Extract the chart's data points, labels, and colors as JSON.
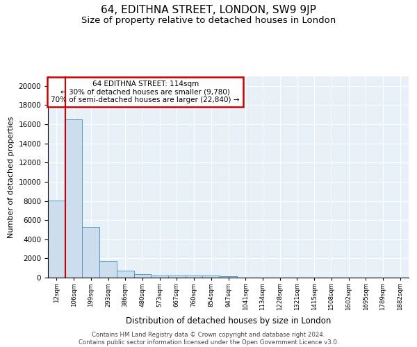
{
  "title": "64, EDITHNA STREET, LONDON, SW9 9JP",
  "subtitle": "Size of property relative to detached houses in London",
  "xlabel": "Distribution of detached houses by size in London",
  "ylabel": "Number of detached properties",
  "categories": [
    "12sqm",
    "106sqm",
    "199sqm",
    "293sqm",
    "386sqm",
    "480sqm",
    "573sqm",
    "667sqm",
    "760sqm",
    "854sqm",
    "947sqm",
    "1041sqm",
    "1134sqm",
    "1228sqm",
    "1321sqm",
    "1415sqm",
    "1508sqm",
    "1602sqm",
    "1695sqm",
    "1789sqm",
    "1882sqm"
  ],
  "bar_heights": [
    8050,
    16500,
    5300,
    1750,
    700,
    330,
    250,
    220,
    200,
    190,
    160,
    0,
    0,
    0,
    0,
    0,
    0,
    0,
    0,
    0,
    0
  ],
  "bar_color": "#ccdded",
  "bar_edge_color": "#5599bb",
  "annotation_box_text": "64 EDITHNA STREET: 114sqm\n← 30% of detached houses are smaller (9,780)\n70% of semi-detached houses are larger (22,840) →",
  "annotation_box_color": "#ffffff",
  "annotation_box_edge_color": "#cc0000",
  "vline_x": 0.5,
  "vline_color": "#cc0000",
  "ylim": [
    0,
    21000
  ],
  "yticks": [
    0,
    2000,
    4000,
    6000,
    8000,
    10000,
    12000,
    14000,
    16000,
    18000,
    20000
  ],
  "footnote": "Contains HM Land Registry data © Crown copyright and database right 2024.\nContains public sector information licensed under the Open Government Licence v3.0.",
  "background_color": "#e8f0f8",
  "title_fontsize": 11,
  "subtitle_fontsize": 9.5
}
